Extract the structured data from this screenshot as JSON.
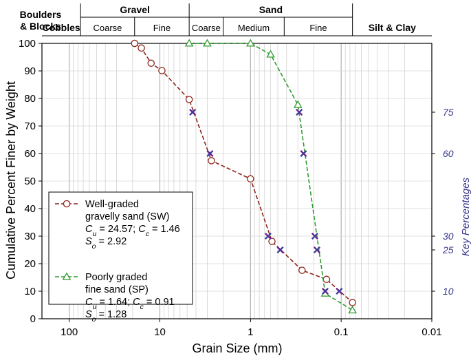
{
  "chart_data": {
    "type": "line",
    "xlabel": "Grain Size (mm)",
    "ylabel": "Cumulative Percent Finer by Weight",
    "y2label": "Key Percentages",
    "x_scale": "log",
    "x_reversed": true,
    "xlim": [
      200,
      0.01
    ],
    "ylim": [
      0,
      100
    ],
    "grid": true,
    "legend_position": "bottom-left",
    "x_ticks": [
      {
        "value": 100,
        "label": "100"
      },
      {
        "value": 10,
        "label": "10"
      },
      {
        "value": 1,
        "label": "1"
      },
      {
        "value": 0.1,
        "label": "0.1"
      },
      {
        "value": 0.01,
        "label": "0.01"
      }
    ],
    "y_ticks": [
      {
        "value": 0,
        "label": "0"
      },
      {
        "value": 10,
        "label": "10"
      },
      {
        "value": 20,
        "label": "20"
      },
      {
        "value": 30,
        "label": "30"
      },
      {
        "value": 40,
        "label": "40"
      },
      {
        "value": 50,
        "label": "50"
      },
      {
        "value": 60,
        "label": "60"
      },
      {
        "value": 70,
        "label": "70"
      },
      {
        "value": 80,
        "label": "80"
      },
      {
        "value": 90,
        "label": "90"
      },
      {
        "value": 100,
        "label": "100"
      }
    ],
    "key_percentages": [
      {
        "value": 75,
        "label": "75"
      },
      {
        "value": 60,
        "label": "60"
      },
      {
        "value": 30,
        "label": "30"
      },
      {
        "value": 25,
        "label": "25"
      },
      {
        "value": 10,
        "label": "10"
      }
    ],
    "classification": {
      "categories": [
        {
          "label": "Boulders & Blocks",
          "lines": [
            "Boulders",
            "& Blocks"
          ],
          "from": 200,
          "to": 300
        },
        {
          "label": "Cobbles",
          "lines": [
            "Cobbles"
          ],
          "from": 75,
          "to": 200
        },
        {
          "label": "Gravel",
          "lines": [
            "Gravel"
          ],
          "from": 4.75,
          "to": 75,
          "subdivisions": [
            {
              "label": "Coarse",
              "from": 19,
              "to": 75
            },
            {
              "label": "Fine",
              "from": 4.75,
              "to": 19
            }
          ]
        },
        {
          "label": "Sand",
          "lines": [
            "Sand"
          ],
          "from": 0.075,
          "to": 4.75,
          "subdivisions": [
            {
              "label": "Coarse",
              "from": 2,
              "to": 4.75
            },
            {
              "label": "Medium",
              "from": 0.425,
              "to": 2
            },
            {
              "label": "Fine",
              "from": 0.075,
              "to": 0.425
            }
          ]
        },
        {
          "label": "Silt & Clay",
          "lines": [
            "Silt & Clay"
          ],
          "from": 0.0001,
          "to": 0.075
        }
      ]
    },
    "series": [
      {
        "name": "Well-graded gravelly sand (SW)",
        "legend_lines": [
          "Well-graded",
          "gravelly sand (SW)"
        ],
        "stats": [
          {
            "parts": [
              {
                "t": "C",
                "i": true
              },
              {
                "t": "u",
                "i": true,
                "sub": true
              },
              {
                "t": " = 24.57; "
              },
              {
                "t": "C",
                "i": true
              },
              {
                "t": "c",
                "i": true,
                "sub": true
              },
              {
                "t": " = 1.46"
              }
            ]
          },
          {
            "parts": [
              {
                "t": "S",
                "i": true
              },
              {
                "t": "o",
                "i": true,
                "sub": true
              },
              {
                "t": " = 2.92"
              }
            ]
          }
        ],
        "color": "#8b2318",
        "dash": "6,3",
        "marker": "circle",
        "x": [
          19,
          16,
          12.5,
          9.5,
          4.75,
          2.7,
          1.0,
          0.58,
          0.27,
          0.145,
          0.075
        ],
        "y": [
          100,
          98.3,
          92.8,
          90.1,
          79.6,
          57.4,
          50.8,
          28.1,
          17.6,
          14.3,
          5.9
        ]
      },
      {
        "name": "Poorly graded fine sand (SP)",
        "legend_lines": [
          "Poorly graded",
          "fine sand (SP)"
        ],
        "stats": [
          {
            "parts": [
              {
                "t": "C",
                "i": true
              },
              {
                "t": "u",
                "i": true,
                "sub": true
              },
              {
                "t": " = 1.64; "
              },
              {
                "t": "C",
                "i": true
              },
              {
                "t": "c",
                "i": true,
                "sub": true
              },
              {
                "t": " = 0.91"
              }
            ]
          },
          {
            "parts": [
              {
                "t": "S",
                "i": true
              },
              {
                "t": "o",
                "i": true,
                "sub": true
              },
              {
                "t": " = 1.28"
              }
            ]
          }
        ],
        "color": "#2f9a2f",
        "dash": "6,3",
        "marker": "triangle",
        "x": [
          4.75,
          3.0,
          1.0,
          0.6,
          0.3,
          0.15,
          0.075
        ],
        "y": [
          100,
          100,
          100,
          96,
          77.7,
          9.2,
          3.1
        ]
      }
    ],
    "key_points": [
      {
        "x": 4.35,
        "y": 75
      },
      {
        "x": 2.8,
        "y": 60
      },
      {
        "x": 0.64,
        "y": 30
      },
      {
        "x": 0.47,
        "y": 25
      },
      {
        "x": 0.105,
        "y": 10
      },
      {
        "x": 0.29,
        "y": 75
      },
      {
        "x": 0.26,
        "y": 60
      },
      {
        "x": 0.195,
        "y": 30
      },
      {
        "x": 0.185,
        "y": 25
      },
      {
        "x": 0.15,
        "y": 10
      }
    ],
    "key_marker_color": "#6a1f8f",
    "key_marker_color_alt": "#3d3a9c"
  }
}
